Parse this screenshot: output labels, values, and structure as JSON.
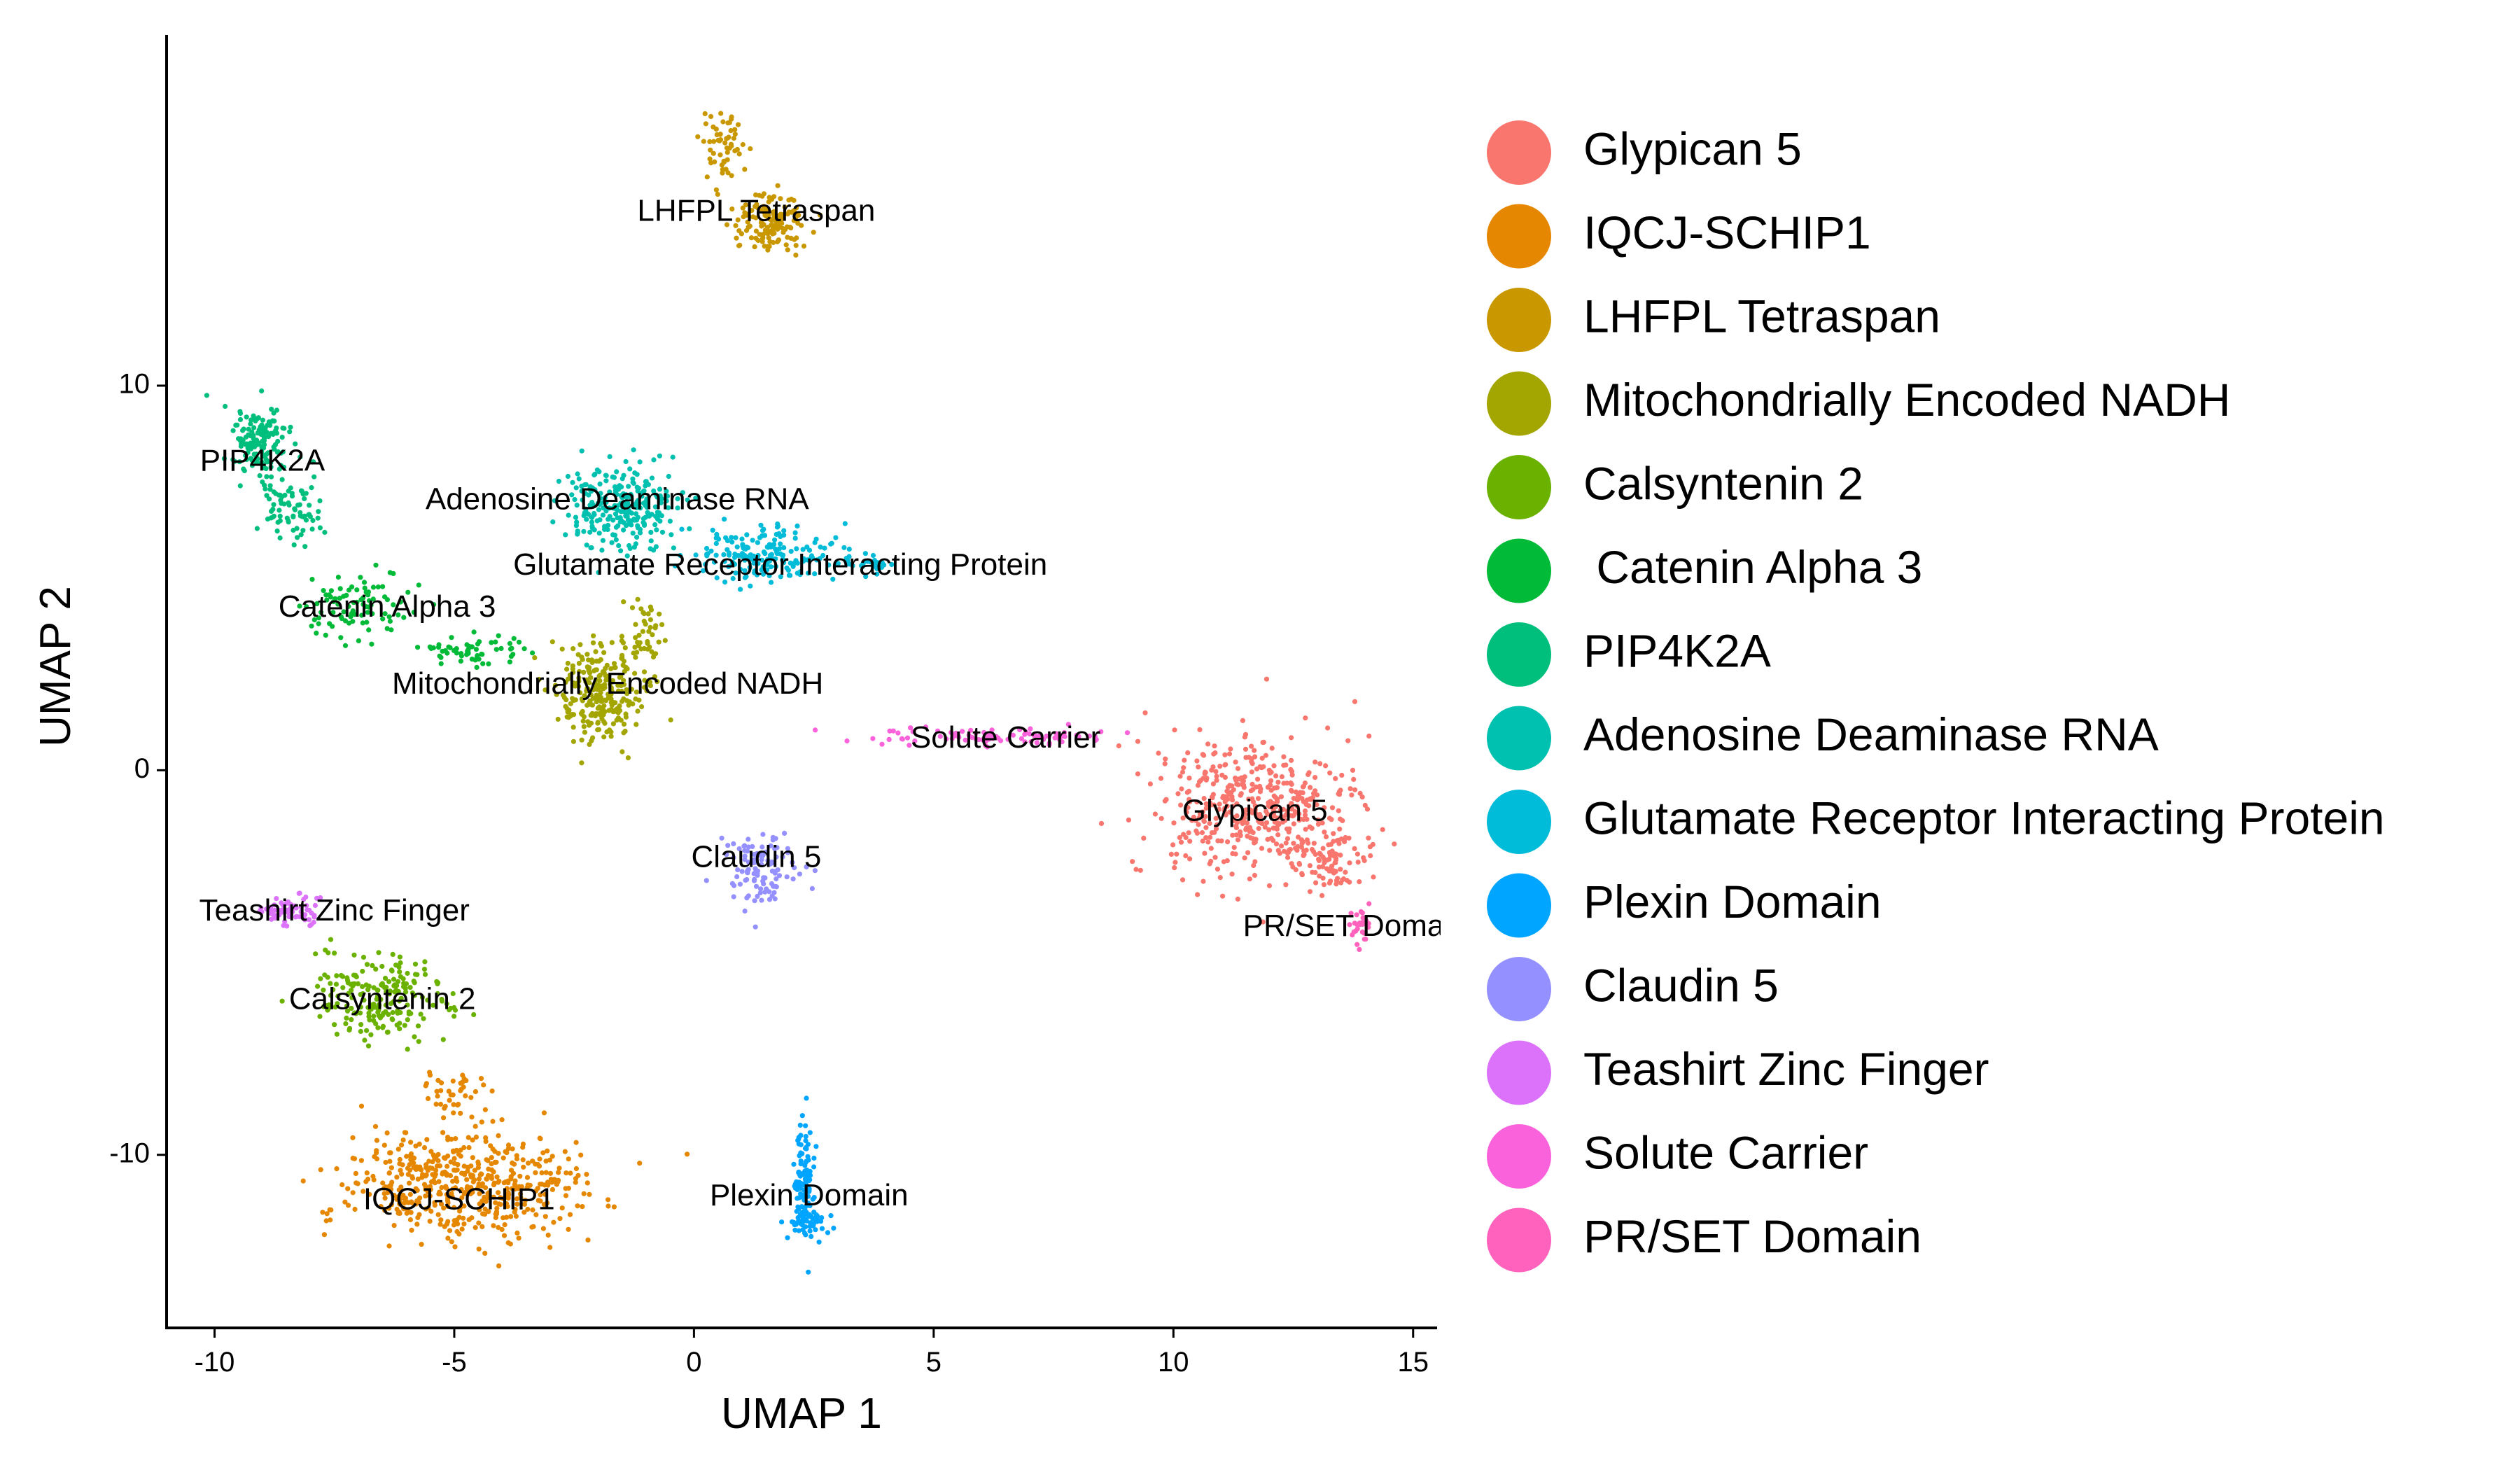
{
  "chart_data": {
    "type": "scatter",
    "xlabel": "UMAP 1",
    "ylabel": "UMAP 2",
    "xlim": [
      -11,
      15.5
    ],
    "ylim": [
      -14.5,
      19.3
    ],
    "xticks": [
      -10,
      -5,
      0,
      5,
      10,
      15
    ],
    "yticks": [
      -10,
      0,
      10
    ],
    "xtick_labels": [
      "-10",
      "-5",
      "0",
      "5",
      "10",
      "15"
    ],
    "ytick_labels": [
      "-10",
      "0",
      "10"
    ],
    "grid": false,
    "legend_position": "right",
    "series": [
      {
        "name": "Glypican 5",
        "color": "#F8766D",
        "clusters": [
          {
            "cx": 11.8,
            "cy": -1.0,
            "sx": 1.4,
            "sy": 1.2,
            "n": 480
          },
          {
            "cx": 13.3,
            "cy": -2.4,
            "sx": 0.5,
            "sy": 0.5,
            "n": 80
          }
        ],
        "label": {
          "text": "Glypican 5",
          "x": 11.7,
          "y": -1.1
        }
      },
      {
        "name": "IQCJ-SCHIP1",
        "color": "#E58700",
        "clusters": [
          {
            "cx": -4.8,
            "cy": -10.8,
            "sx": 1.7,
            "sy": 0.9,
            "n": 520
          },
          {
            "cx": -5.0,
            "cy": -8.5,
            "sx": 0.5,
            "sy": 0.5,
            "n": 40
          }
        ],
        "label": {
          "text": "IQCJ-SCHIP1",
          "x": -4.9,
          "y": -11.2
        }
      },
      {
        "name": "LHFPL Tetraspan",
        "color": "#C99800",
        "clusters": [
          {
            "cx": 1.6,
            "cy": 14.2,
            "sx": 0.5,
            "sy": 0.5,
            "n": 140
          },
          {
            "cx": 0.6,
            "cy": 16.2,
            "sx": 0.25,
            "sy": 0.7,
            "n": 60
          }
        ],
        "label": {
          "text": "LHFPL Tetraspan",
          "x": 1.3,
          "y": 14.5
        }
      },
      {
        "name": "Mitochondrially Encoded NADH",
        "color": "#A3A500",
        "clusters": [
          {
            "cx": -2.0,
            "cy": 2.0,
            "sx": 0.6,
            "sy": 0.9,
            "n": 260
          },
          {
            "cx": -1.0,
            "cy": 3.6,
            "sx": 0.3,
            "sy": 0.6,
            "n": 40
          }
        ],
        "label": {
          "text": "Mitochondrially Encoded NADH",
          "x": -1.8,
          "y": 2.2
        }
      },
      {
        "name": "Calsyntenin 2",
        "color": "#6BB100",
        "clusters": [
          {
            "cx": -6.5,
            "cy": -5.9,
            "sx": 1.0,
            "sy": 0.7,
            "n": 200
          }
        ],
        "label": {
          "text": "Calsyntenin 2",
          "x": -6.5,
          "y": -6.0
        }
      },
      {
        "name": " Catenin Alpha 3",
        "color": "#00BA38",
        "clusters": [
          {
            "cx": -7.0,
            "cy": 4.3,
            "sx": 0.9,
            "sy": 0.6,
            "n": 90
          },
          {
            "cx": -4.6,
            "cy": 3.1,
            "sx": 0.8,
            "sy": 0.25,
            "n": 60
          }
        ],
        "label": {
          "text": "Catenin Alpha 3",
          "x": -6.4,
          "y": 4.2
        }
      },
      {
        "name": "PIP4K2A",
        "color": "#00BF7D",
        "clusters": [
          {
            "cx": -9.1,
            "cy": 8.6,
            "sx": 0.4,
            "sy": 0.6,
            "n": 150
          },
          {
            "cx": -8.4,
            "cy": 6.8,
            "sx": 0.4,
            "sy": 0.7,
            "n": 80
          }
        ],
        "label": {
          "text": "PIP4K2A",
          "x": -9.0,
          "y": 8.0
        }
      },
      {
        "name": "Adenosine Deaminase RNA",
        "color": "#00C0AF",
        "clusters": [
          {
            "cx": -1.5,
            "cy": 6.9,
            "sx": 0.8,
            "sy": 0.7,
            "n": 260
          }
        ],
        "label": {
          "text": "Adenosine Deaminase RNA",
          "x": -1.6,
          "y": 7.0
        }
      },
      {
        "name": "Glutamate Receptor Interacting Protein",
        "color": "#00BCD8",
        "clusters": [
          {
            "cx": 1.5,
            "cy": 5.6,
            "sx": 0.9,
            "sy": 0.5,
            "n": 180
          },
          {
            "cx": 3.6,
            "cy": 5.4,
            "sx": 0.3,
            "sy": 0.2,
            "n": 30
          }
        ],
        "label": {
          "text": "Glutamate Receptor Interacting Protein",
          "x": 1.8,
          "y": 5.3
        }
      },
      {
        "name": "Plexin Domain",
        "color": "#00A5FF",
        "clusters": [
          {
            "cx": 2.3,
            "cy": -10.8,
            "sx": 0.12,
            "sy": 1.0,
            "n": 110
          },
          {
            "cx": 2.4,
            "cy": -11.7,
            "sx": 0.3,
            "sy": 0.3,
            "n": 40
          }
        ],
        "label": {
          "text": "Plexin Domain",
          "x": 2.4,
          "y": -11.1
        }
      },
      {
        "name": "Claudin 5",
        "color": "#9590FF",
        "clusters": [
          {
            "cx": 1.4,
            "cy": -2.6,
            "sx": 0.5,
            "sy": 0.7,
            "n": 110
          }
        ],
        "label": {
          "text": "Claudin 5",
          "x": 1.3,
          "y": -2.3
        }
      },
      {
        "name": "Teashirt Zinc Finger",
        "color": "#DC71FA",
        "clusters": [
          {
            "cx": -8.4,
            "cy": -3.6,
            "sx": 0.4,
            "sy": 0.25,
            "n": 70
          }
        ],
        "label": {
          "text": "Teashirt Zinc Finger",
          "x": -7.5,
          "y": -3.7
        }
      },
      {
        "name": "Solute Carrier",
        "color": "#FA62DB",
        "clusters": [
          {
            "cx": 6.2,
            "cy": 0.9,
            "sx": 1.6,
            "sy": 0.18,
            "n": 90
          }
        ],
        "label": {
          "text": "Solute Carrier",
          "x": 6.5,
          "y": 0.8
        }
      },
      {
        "name": "PR/SET Domain",
        "color": "#FF62BC",
        "clusters": [
          {
            "cx": 13.9,
            "cy": -4.1,
            "sx": 0.15,
            "sy": 0.4,
            "n": 30
          }
        ],
        "label": {
          "text": "PR/SET Domain",
          "x": 13.8,
          "y": -4.1
        }
      }
    ]
  }
}
